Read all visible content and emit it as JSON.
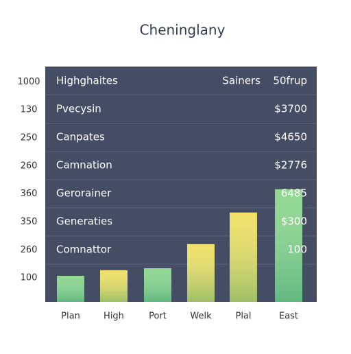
{
  "chart_data": {
    "type": "bar",
    "title": "Cheninglany",
    "header": {
      "label": "Highghaites",
      "col1": "Sainers",
      "col2": "50frup"
    },
    "rows": [
      {
        "label": "Pvecysin",
        "value": "$3700"
      },
      {
        "label": "Canpates",
        "value": "$4650"
      },
      {
        "label": "Camnation",
        "value": "$2776"
      },
      {
        "label": "Gerorainer",
        "value": "6485"
      },
      {
        "label": "Generaties",
        "value": "$300"
      },
      {
        "label": "Comnattor",
        "value": "100"
      }
    ],
    "categories": [
      "Plan",
      "High",
      "Port",
      "Welk",
      "Plal",
      "East"
    ],
    "values": [
      0.93,
      1.13,
      1.2,
      2.06,
      3.19,
      4.02
    ],
    "colors": [
      "#7fd17f",
      "#f0dc50",
      "#7fd17f",
      "#f0dc50",
      "#f0dc50",
      "#7fd17f"
    ],
    "ylim": [
      0,
      8.4
    ],
    "yticks": [
      {
        "value": 1,
        "label": "100"
      },
      {
        "value": 2,
        "label": "260"
      },
      {
        "value": 3,
        "label": "350"
      },
      {
        "value": 4,
        "label": "360"
      },
      {
        "value": 5,
        "label": "260"
      },
      {
        "value": 6,
        "label": "250"
      },
      {
        "value": 7,
        "label": "130"
      },
      {
        "value": 8,
        "label": "1000"
      }
    ]
  }
}
